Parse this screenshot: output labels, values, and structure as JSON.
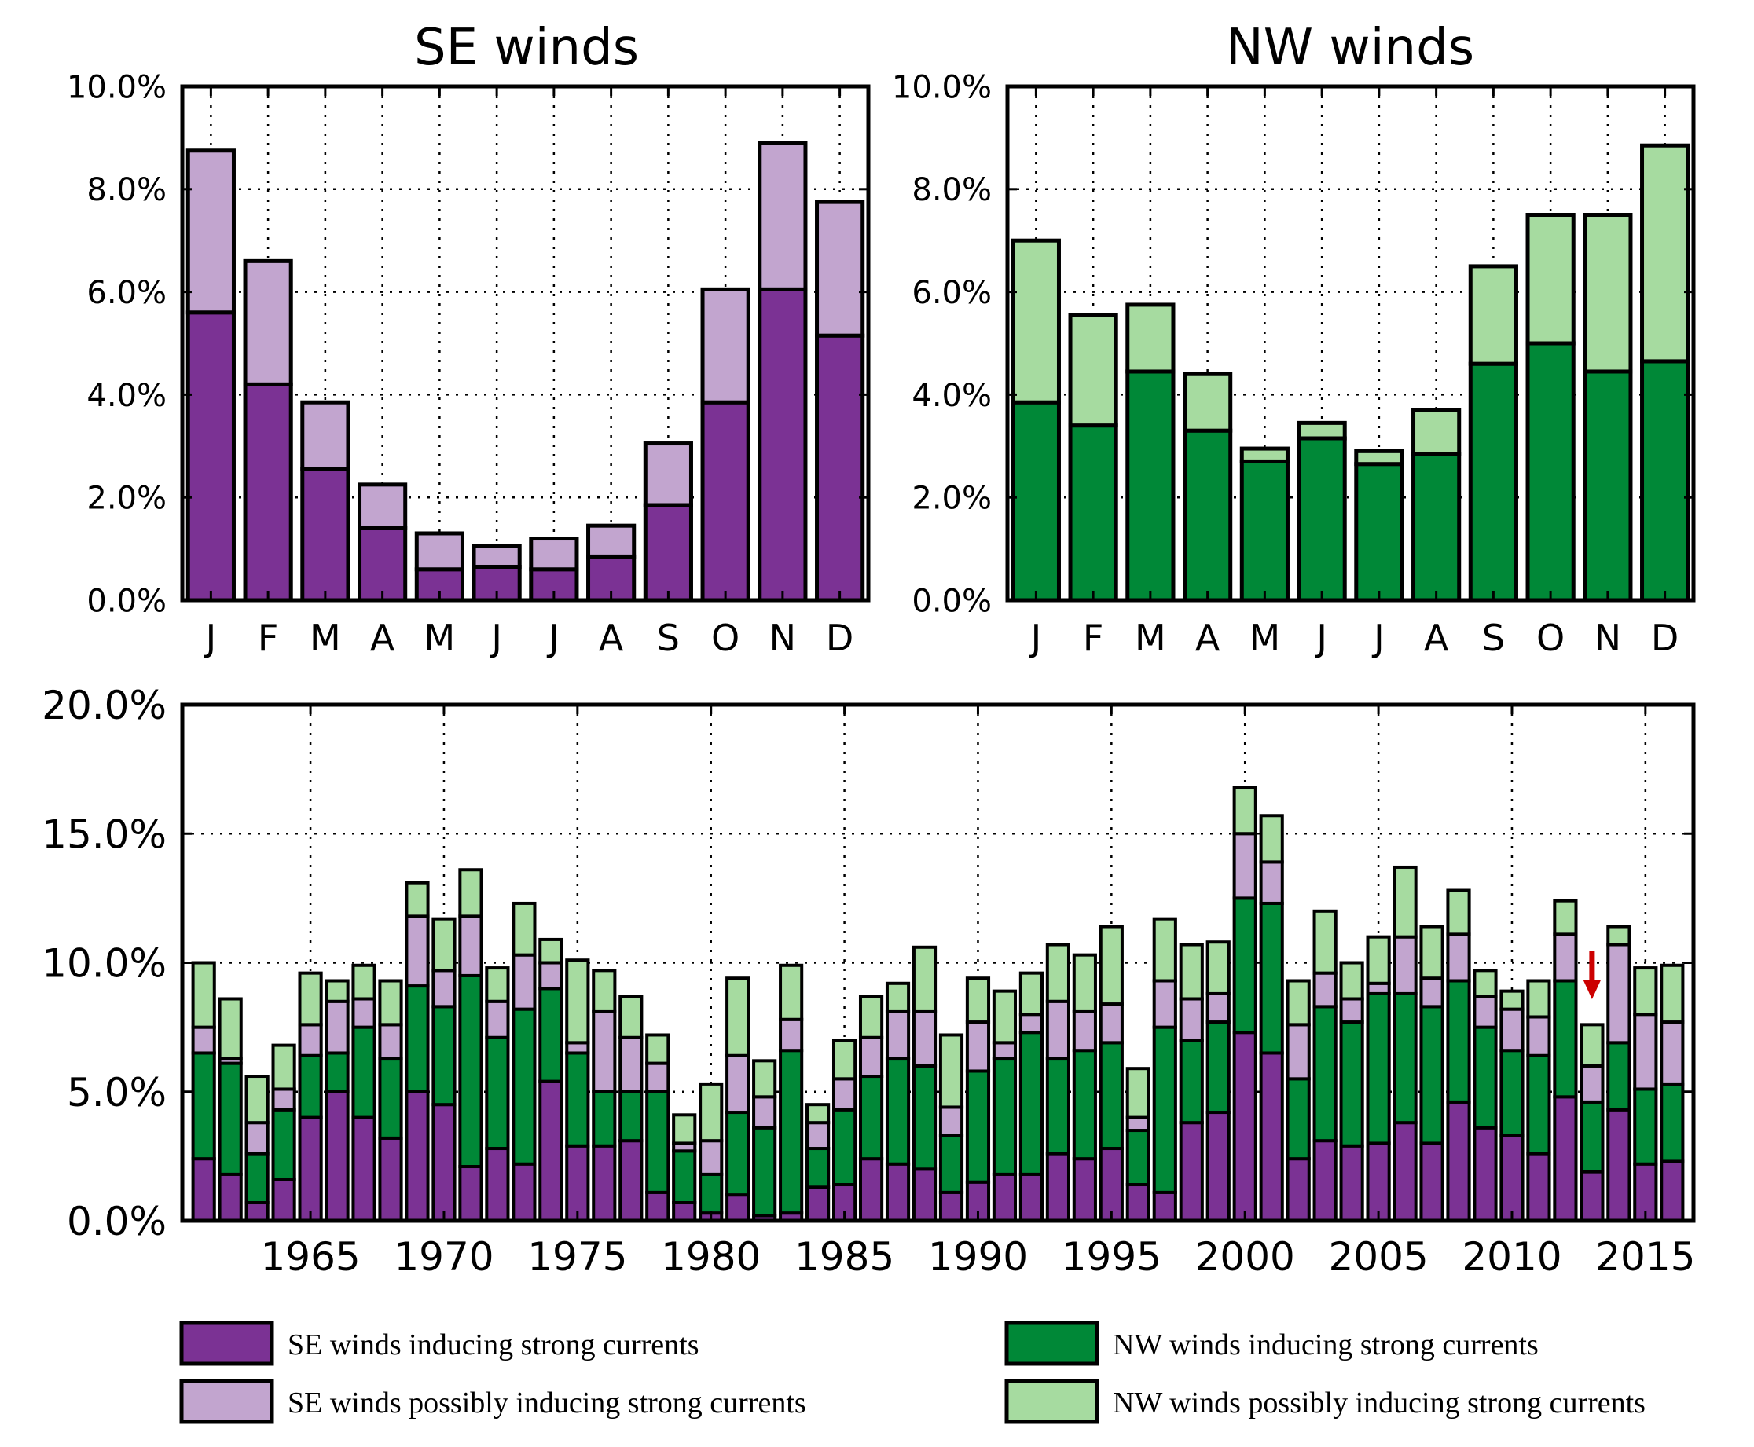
{
  "colors": {
    "se_strong": "#7b3294",
    "se_possible": "#c2a5cf",
    "nw_strong": "#008837",
    "nw_possible": "#a6dba0",
    "arrow": "#cc0000"
  },
  "legend": [
    {
      "label": "SE winds inducing strong currents",
      "color_key": "se_strong"
    },
    {
      "label": "SE winds possibly inducing strong currents",
      "color_key": "se_possible"
    },
    {
      "label": "NW winds inducing strong currents",
      "color_key": "nw_strong"
    },
    {
      "label": "NW winds possibly inducing strong currents",
      "color_key": "nw_possible"
    }
  ],
  "chart_data": [
    {
      "id": "se-monthly",
      "type": "bar",
      "stacked": true,
      "title": "SE winds",
      "xlabel": "",
      "ylabel": "",
      "ylim": [
        0,
        10
      ],
      "yticks": [
        "0.0%",
        "2.0%",
        "4.0%",
        "6.0%",
        "8.0%",
        "10.0%"
      ],
      "grid": true,
      "categories": [
        "J",
        "F",
        "M",
        "A",
        "M",
        "J",
        "J",
        "A",
        "S",
        "O",
        "N",
        "D"
      ],
      "series": [
        {
          "name": "SE winds inducing strong currents",
          "color_key": "se_strong",
          "values": [
            5.6,
            4.2,
            2.55,
            1.4,
            0.6,
            0.65,
            0.6,
            0.85,
            1.85,
            3.85,
            6.05,
            5.15
          ]
        },
        {
          "name": "SE winds possibly inducing strong currents",
          "color_key": "se_possible",
          "values": [
            3.15,
            2.4,
            1.3,
            0.85,
            0.7,
            0.4,
            0.6,
            0.6,
            1.2,
            2.2,
            2.85,
            2.6
          ]
        }
      ]
    },
    {
      "id": "nw-monthly",
      "type": "bar",
      "stacked": true,
      "title": "NW winds",
      "xlabel": "",
      "ylabel": "",
      "ylim": [
        0,
        10
      ],
      "yticks": [
        "0.0%",
        "2.0%",
        "4.0%",
        "6.0%",
        "8.0%",
        "10.0%"
      ],
      "grid": true,
      "categories": [
        "J",
        "F",
        "M",
        "A",
        "M",
        "J",
        "J",
        "A",
        "S",
        "O",
        "N",
        "D"
      ],
      "series": [
        {
          "name": "NW winds inducing strong currents",
          "color_key": "nw_strong",
          "values": [
            3.85,
            3.4,
            4.45,
            3.3,
            2.7,
            3.15,
            2.65,
            2.85,
            4.6,
            5.0,
            4.45,
            4.65
          ]
        },
        {
          "name": "NW winds possibly inducing strong currents",
          "color_key": "nw_possible",
          "values": [
            3.15,
            2.15,
            1.3,
            1.1,
            0.25,
            0.3,
            0.25,
            0.85,
            1.9,
            2.5,
            3.05,
            4.2
          ]
        }
      ]
    },
    {
      "id": "annual",
      "type": "bar",
      "stacked": true,
      "title": "",
      "xlabel": "",
      "ylabel": "",
      "ylim": [
        0,
        20
      ],
      "xlim": [
        1960.2,
        2016.8
      ],
      "yticks": [
        "0.0%",
        "5.0%",
        "10.0%",
        "15.0%",
        "20.0%"
      ],
      "xticks": [
        "1965",
        "1970",
        "1975",
        "1980",
        "1985",
        "1990",
        "1995",
        "2000",
        "2005",
        "2010",
        "2015"
      ],
      "grid": true,
      "annotation": {
        "type": "arrow",
        "year": 2013,
        "direction": "down"
      },
      "x": [
        1961,
        1962,
        1963,
        1964,
        1965,
        1966,
        1967,
        1968,
        1969,
        1970,
        1971,
        1972,
        1973,
        1974,
        1975,
        1976,
        1977,
        1978,
        1979,
        1980,
        1981,
        1982,
        1983,
        1984,
        1985,
        1986,
        1987,
        1988,
        1989,
        1990,
        1991,
        1992,
        1993,
        1994,
        1995,
        1996,
        1997,
        1998,
        1999,
        2000,
        2001,
        2002,
        2003,
        2004,
        2005,
        2006,
        2007,
        2008,
        2009,
        2010,
        2011,
        2012,
        2013,
        2014,
        2015,
        2016
      ],
      "series": [
        {
          "name": "SE winds inducing strong currents",
          "color_key": "se_strong",
          "values": [
            2.4,
            1.8,
            0.7,
            1.6,
            4.0,
            5.0,
            4.0,
            3.2,
            5.0,
            4.5,
            2.1,
            2.8,
            2.2,
            5.4,
            2.9,
            2.9,
            3.1,
            1.1,
            0.7,
            0.3,
            1.0,
            0.2,
            0.3,
            1.3,
            1.4,
            2.4,
            2.2,
            2.0,
            1.1,
            1.5,
            1.8,
            1.8,
            2.6,
            2.4,
            2.8,
            1.4,
            1.1,
            3.8,
            4.2,
            7.3,
            6.5,
            2.4,
            3.1,
            2.9,
            3.0,
            3.8,
            3.0,
            4.6,
            3.6,
            3.3,
            2.6,
            4.8,
            1.9,
            4.3,
            2.2,
            2.3
          ]
        },
        {
          "name": "NW winds inducing strong currents",
          "color_key": "nw_strong",
          "values": [
            4.1,
            4.3,
            1.9,
            2.7,
            2.4,
            1.5,
            3.5,
            3.1,
            4.1,
            3.8,
            7.4,
            4.3,
            6.0,
            3.6,
            3.6,
            2.1,
            1.9,
            3.9,
            2.0,
            1.5,
            3.2,
            3.4,
            6.3,
            1.5,
            2.9,
            3.2,
            4.1,
            4.0,
            2.2,
            4.3,
            4.5,
            5.5,
            3.7,
            4.2,
            4.1,
            2.1,
            6.4,
            3.2,
            3.5,
            5.2,
            5.8,
            3.1,
            5.2,
            4.8,
            5.8,
            5.0,
            5.3,
            4.7,
            3.9,
            3.3,
            3.8,
            4.5,
            2.7,
            2.6,
            2.9,
            3.0
          ]
        },
        {
          "name": "SE winds possibly inducing strong currents",
          "color_key": "se_possible",
          "values": [
            1.0,
            0.2,
            1.2,
            0.8,
            1.2,
            2.0,
            1.1,
            1.3,
            2.7,
            1.4,
            2.3,
            1.4,
            2.1,
            1.0,
            0.4,
            3.1,
            2.1,
            1.1,
            0.3,
            1.3,
            2.2,
            1.2,
            1.2,
            1.0,
            1.2,
            1.5,
            1.8,
            2.1,
            1.1,
            1.9,
            0.6,
            0.7,
            2.2,
            1.5,
            1.5,
            0.5,
            1.8,
            1.6,
            1.1,
            2.5,
            1.6,
            2.1,
            1.3,
            0.9,
            0.4,
            2.2,
            1.1,
            1.8,
            1.2,
            1.6,
            1.5,
            1.8,
            1.4,
            3.8,
            2.9,
            2.4
          ]
        },
        {
          "name": "NW winds possibly inducing strong currents",
          "color_key": "nw_possible",
          "values": [
            2.5,
            2.3,
            1.8,
            1.7,
            2.0,
            0.8,
            1.3,
            1.7,
            1.3,
            2.0,
            1.8,
            1.3,
            2.0,
            0.9,
            3.2,
            1.6,
            1.6,
            1.1,
            1.1,
            2.2,
            3.0,
            1.4,
            2.1,
            0.7,
            1.5,
            1.6,
            1.1,
            2.5,
            2.8,
            1.7,
            2.0,
            1.6,
            2.2,
            2.2,
            3.0,
            1.9,
            2.4,
            2.1,
            2.0,
            1.8,
            1.8,
            1.7,
            2.4,
            1.4,
            1.8,
            2.7,
            2.0,
            1.7,
            1.0,
            0.7,
            1.4,
            1.3,
            1.6,
            0.7,
            1.8,
            2.2
          ]
        }
      ]
    }
  ]
}
